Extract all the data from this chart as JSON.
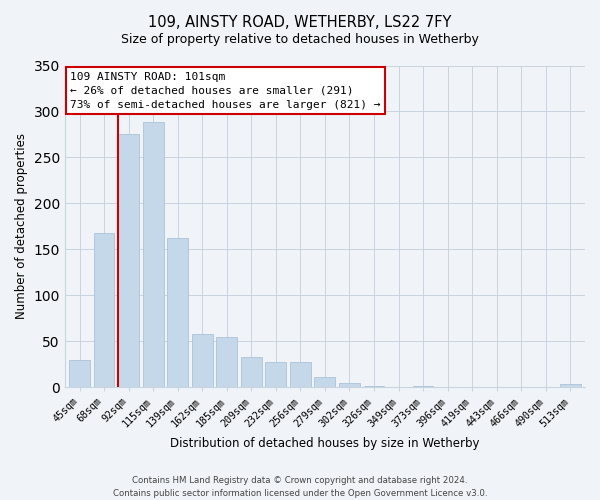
{
  "title": "109, AINSTY ROAD, WETHERBY, LS22 7FY",
  "subtitle": "Size of property relative to detached houses in Wetherby",
  "xlabel": "Distribution of detached houses by size in Wetherby",
  "ylabel": "Number of detached properties",
  "bar_color": "#c5d8ea",
  "bar_edge_color": "#aac4d8",
  "vline_color": "#cc0000",
  "categories": [
    "45sqm",
    "68sqm",
    "92sqm",
    "115sqm",
    "139sqm",
    "162sqm",
    "185sqm",
    "209sqm",
    "232sqm",
    "256sqm",
    "279sqm",
    "302sqm",
    "326sqm",
    "349sqm",
    "373sqm",
    "396sqm",
    "419sqm",
    "443sqm",
    "466sqm",
    "490sqm",
    "513sqm"
  ],
  "values": [
    29,
    168,
    275,
    288,
    162,
    58,
    54,
    33,
    27,
    27,
    11,
    5,
    1,
    0,
    1,
    0,
    0,
    0,
    0,
    0,
    3
  ],
  "ylim": [
    0,
    350
  ],
  "yticks": [
    0,
    50,
    100,
    150,
    200,
    250,
    300,
    350
  ],
  "annotation_line1": "109 AINSTY ROAD: 101sqm",
  "annotation_line2": "← 26% of detached houses are smaller (291)",
  "annotation_line3": "73% of semi-detached houses are larger (821) →",
  "footer1": "Contains HM Land Registry data © Crown copyright and database right 2024.",
  "footer2": "Contains public sector information licensed under the Open Government Licence v3.0.",
  "background_color": "#f0f4f8",
  "grid_color": "#c8d4e0"
}
